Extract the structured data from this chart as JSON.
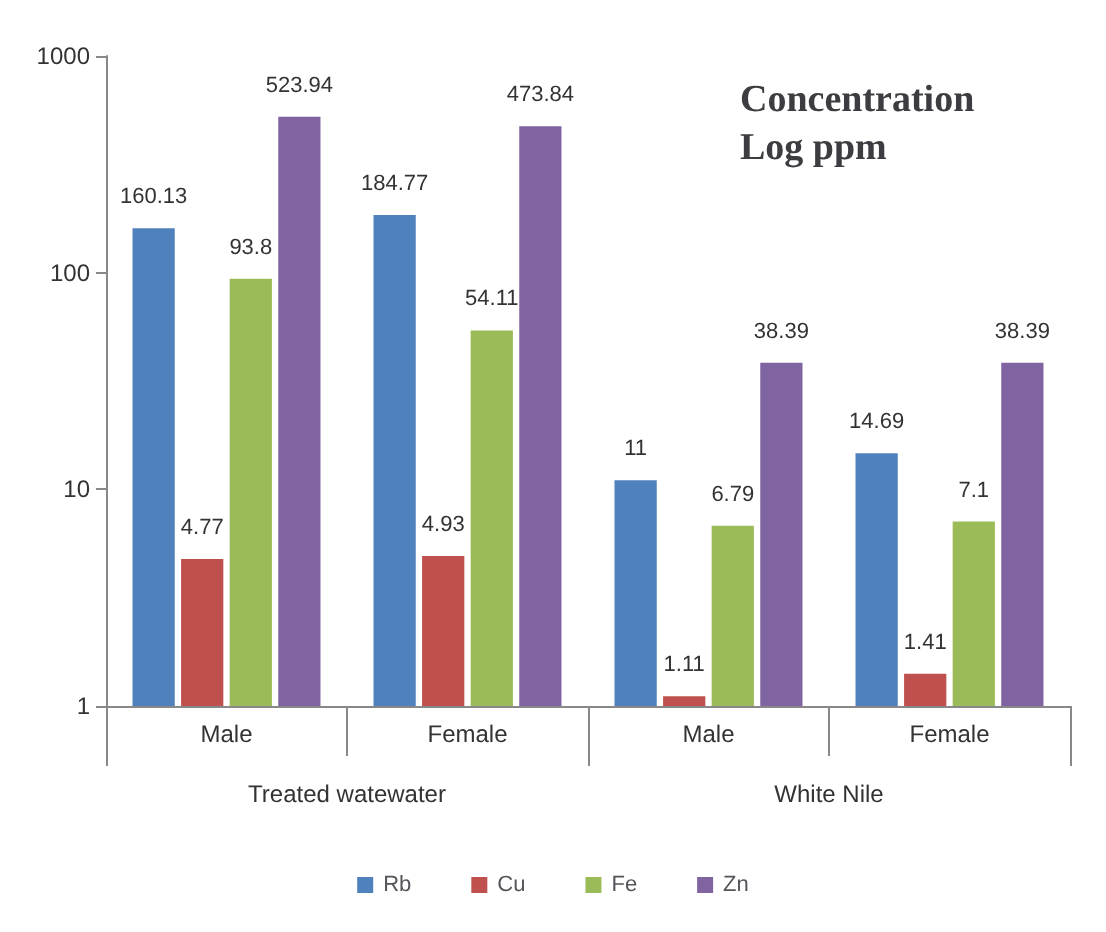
{
  "chart_data": {
    "type": "bar",
    "title": "Concentration Log ppm",
    "categories": [
      "Male",
      "Female",
      "Male",
      "Female"
    ],
    "annotations": [
      "Treated watewater",
      "White Nile"
    ],
    "series": [
      {
        "name": "Rb",
        "color": "#4f81bd",
        "values": [
          160.13,
          184.77,
          11,
          14.69
        ]
      },
      {
        "name": "Cu",
        "color": "#c0504d",
        "values": [
          4.77,
          4.93,
          1.11,
          1.41
        ]
      },
      {
        "name": "Fe",
        "color": "#9bbb59",
        "values": [
          93.8,
          54.11,
          6.79,
          7.1
        ]
      },
      {
        "name": "Zn",
        "color": "#8064a2",
        "values": [
          523.94,
          473.84,
          38.39,
          38.39
        ]
      }
    ],
    "log": true,
    "ylim": [
      1,
      1000
    ],
    "yticks": [
      1,
      10,
      100,
      1000
    ],
    "data_labels": true,
    "legend": "bottom",
    "grid": false
  }
}
